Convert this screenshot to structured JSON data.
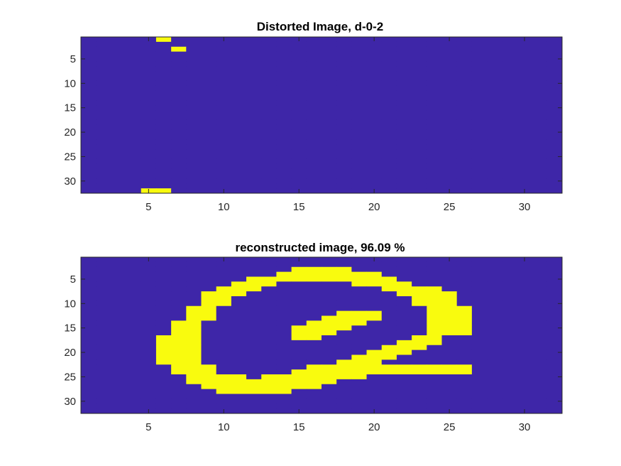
{
  "chart_data": [
    {
      "type": "heatmap",
      "title": "Distorted Image, d-0-2",
      "xlabel": "",
      "ylabel": "",
      "xlim": [
        0.5,
        32.5
      ],
      "ylim": [
        0.5,
        32.5
      ],
      "y_direction": "reverse",
      "xticks": [
        5,
        10,
        15,
        20,
        25,
        30
      ],
      "yticks": [
        5,
        10,
        15,
        20,
        25,
        30
      ],
      "colors": {
        "0": "#3e26a8",
        "1": "#f9fb0e"
      },
      "rows": [
        "00000100000000000000000000000000",
        "00000000000000000000000000000000",
        "00000010000000000000000000000000",
        "00000000000000000000000000000000",
        "00000000000000000000000000000000",
        "00000000000000000000000000000000",
        "00000000000000000000000000000000",
        "00000000000000000000000000000000",
        "00000000000000000000000000000000",
        "00000000000000000000000000000000",
        "00000000000000000000000000000000",
        "00000000000000000000000000000000",
        "00000000000000000000000000000000",
        "00000000000000000000000000000000",
        "00000000000000000000000000000000",
        "00000000000000000000000000000000",
        "00000000000000000000000000000000",
        "00000000000000000000000000000000",
        "00000000000000000000000000000000",
        "00000000000000000000000000000000",
        "00000000000000000000000000000000",
        "00000000000000000000000000000000",
        "00000000000000000000000000000000",
        "00000000000000000000000000000000",
        "00000000000000000000000000000000",
        "00000000000000000000000000000000",
        "00000000000000000000000000000000",
        "00000000000000000000000000000000",
        "00000000000000000000000000000000",
        "00000000000000000000000000000000",
        "00000000000000000000000000000000",
        "00001100000000000000000000000000"
      ]
    },
    {
      "type": "heatmap",
      "title": "reconstructed image, 96.09 %",
      "xlabel": "",
      "ylabel": "",
      "xlim": [
        0.5,
        32.5
      ],
      "ylim": [
        0.5,
        32.5
      ],
      "y_direction": "reverse",
      "xticks": [
        5,
        10,
        15,
        20,
        25,
        30
      ],
      "yticks": [
        5,
        10,
        15,
        20,
        25,
        30
      ],
      "colors": {
        "0": "#3e26a8",
        "1": "#f9fb0e"
      },
      "rows": [
        "00000000000000000000000000000000",
        "00000000000000000000000000000000",
        "00000000000000111100000000000000",
        "00000000000001111111000000000000",
        "00000000000111111111100000000000",
        "00000000001110000011110000000000",
        "00000000011100000000111100000000",
        "00000000111000000000011110000000",
        "00000000110000000000001110000000",
        "00000000110000000000001110000000",
        "00000001100000000000000111000000",
        "00000001100000000111000111000000",
        "00000001100000001111000111000000",
        "00000011000000011110000111000000",
        "00000011000000111100000111000000",
        "00000011000000111000000111000000",
        "00000111000000110000001100000000",
        "00000111000000000000011100000000",
        "00000111000000000000111000000000",
        "00000111000000000001110000000000",
        "00000111000000000011100000000000",
        "00000111000000000111000000000000",
        "00000011100000011111111111000000",
        "00000011100000111111111111000000",
        "00000001111011111110000000000000",
        "00000001111111111000000000000000",
        "00000000111111110000000000000000",
        "00000000011111000000000000000000",
        "00000000000000000000000000000000",
        "00000000000000000000000000000000",
        "00000000000000000000000000000000",
        "00000000000000000000000000000000"
      ]
    }
  ]
}
